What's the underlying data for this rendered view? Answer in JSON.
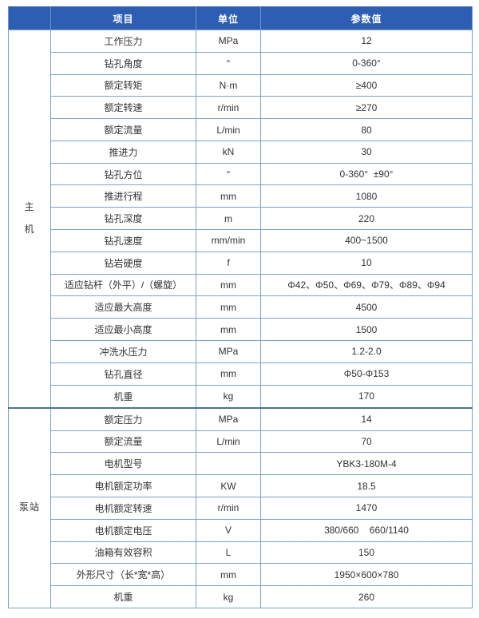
{
  "table": {
    "headers": {
      "group": "",
      "item": "项目",
      "unit": "单位",
      "value": "参数值"
    },
    "accent_color": "#2c5eb4",
    "grid_color": "#7ca2cf",
    "groups": [
      {
        "label": "主机",
        "label_lines": [
          "主",
          "机"
        ],
        "rows": [
          {
            "item": "工作压力",
            "unit": "MPa",
            "value": "12"
          },
          {
            "item": "钻孔角度",
            "unit": "°",
            "value": "0-360°"
          },
          {
            "item": "额定转矩",
            "unit": "N·m",
            "value": "≥400"
          },
          {
            "item": "额定转速",
            "unit": "r/min",
            "value": "≥270"
          },
          {
            "item": "额定流量",
            "unit": "L/min",
            "value": "80"
          },
          {
            "item": "推进力",
            "unit": "kN",
            "value": "30"
          },
          {
            "item": "钻孔方位",
            "unit": "°",
            "value": "0-360°  ±90°"
          },
          {
            "item": "推进行程",
            "unit": "mm",
            "value": "1080"
          },
          {
            "item": "钻孔深度",
            "unit": "m",
            "value": "220"
          },
          {
            "item": "钻孔速度",
            "unit": "mm/min",
            "value": "400~1500"
          },
          {
            "item": "钻岩硬度",
            "unit": "f",
            "value": "10"
          },
          {
            "item": "适应钻杆（外平）/（螺旋）",
            "unit": "mm",
            "value": "Φ42、Φ50、Φ69、Φ79、Φ89、Φ94"
          },
          {
            "item": "适应最大高度",
            "unit": "mm",
            "value": "4500"
          },
          {
            "item": "适应最小高度",
            "unit": "mm",
            "value": "1500"
          },
          {
            "item": "冲洗水压力",
            "unit": "MPa",
            "value": "1.2-2.0"
          },
          {
            "item": "钻孔直径",
            "unit": "mm",
            "value": "Φ50-Φ153"
          },
          {
            "item": "机重",
            "unit": "kg",
            "value": "170"
          }
        ]
      },
      {
        "label": "泵站",
        "label_lines": [
          "泵站"
        ],
        "rows": [
          {
            "item": "额定压力",
            "unit": "MPa",
            "value": "14"
          },
          {
            "item": "额定流量",
            "unit": "L/min",
            "value": "70"
          },
          {
            "item": "电机型号",
            "unit": "",
            "value": "YBK3-180M-4"
          },
          {
            "item": "电机额定功率",
            "unit": "KW",
            "value": "18.5"
          },
          {
            "item": "电机额定转速",
            "unit": "r/min",
            "value": "1470"
          },
          {
            "item": "电机额定电压",
            "unit": "V",
            "value": "380/660    660/1140"
          },
          {
            "item": "油箱有效容积",
            "unit": "L",
            "value": "150"
          },
          {
            "item": "外形尺寸（长*宽*高）",
            "unit": "mm",
            "value": "1950×600×780"
          },
          {
            "item": "机重",
            "unit": "kg",
            "value": "260"
          }
        ]
      }
    ]
  }
}
